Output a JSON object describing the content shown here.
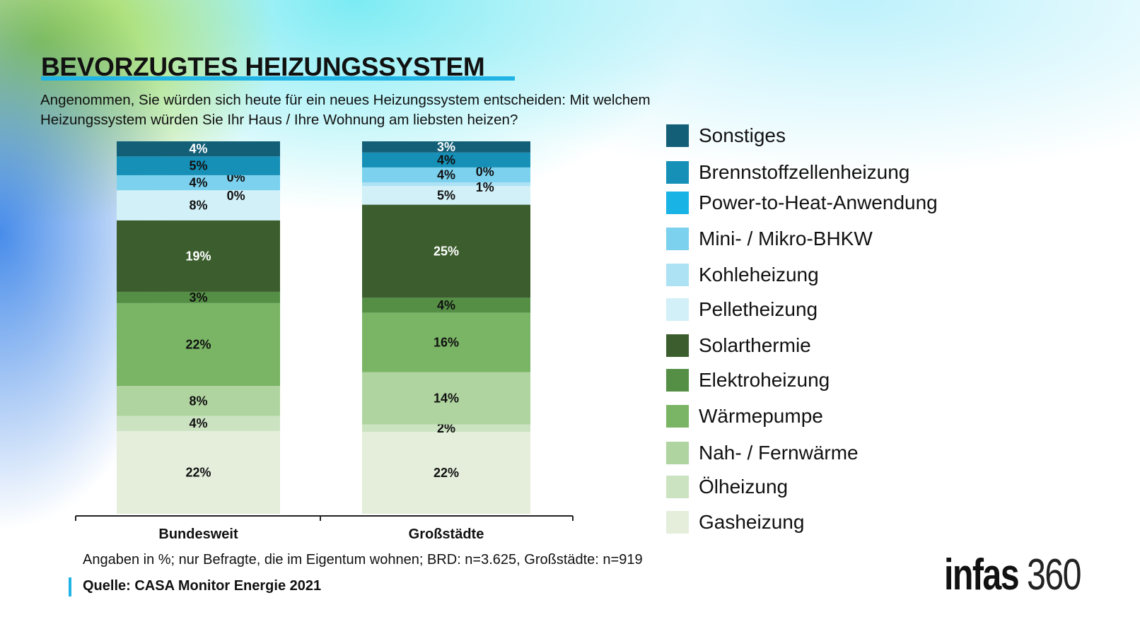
{
  "header": {
    "title": "BEVORZUGTES HEIZUNGSSYSTEM",
    "subtitle": "Angenommen, Sie würden sich heute für ein neues Heizungssystem entscheiden: Mit welchem Heizungssystem würden Sie Ihr Haus / Ihre Wohnung am liebsten heizen?"
  },
  "chart_data": {
    "type": "bar",
    "stacked": true,
    "percent": true,
    "categories": [
      "Bundesweit",
      "Großstädte"
    ],
    "series": [
      {
        "name": "Gasheizung",
        "color": "#e4eedb",
        "label_color": "#111111",
        "values": [
          22,
          22
        ]
      },
      {
        "name": "Ölheizung",
        "color": "#cce3c2",
        "label_color": "#111111",
        "values": [
          4,
          2
        ]
      },
      {
        "name": "Nah- / Fernwärme",
        "color": "#b0d4a0",
        "label_color": "#111111",
        "values": [
          8,
          14
        ]
      },
      {
        "name": "Wärmepumpe",
        "color": "#7ab565",
        "label_color": "#111111",
        "values": [
          22,
          16
        ]
      },
      {
        "name": "Elektroheizung",
        "color": "#548f45",
        "label_color": "#111111",
        "values": [
          3,
          4
        ]
      },
      {
        "name": "Solarthermie",
        "color": "#3c5e2e",
        "label_color": "#ffffff",
        "values": [
          19,
          25
        ]
      },
      {
        "name": "Pelletheizung",
        "color": "#d2f0f8",
        "label_color": "#111111",
        "values": [
          8,
          5
        ]
      },
      {
        "name": "Kohleheizung",
        "color": "#ade2f4",
        "label_color": "#111111",
        "values": [
          0,
          1
        ],
        "label_side": true
      },
      {
        "name": "Mini- / Mikro-BHKW",
        "color": "#7bd1ee",
        "label_color": "#111111",
        "values": [
          4,
          4
        ]
      },
      {
        "name": "Power-to-Heat-Anwendung",
        "color": "#1ab3e6",
        "label_color": "#111111",
        "values": [
          0,
          0
        ],
        "label_side": true
      },
      {
        "name": "Brennstoffzellenheizung",
        "color": "#1690b7",
        "label_color": "#111111",
        "values": [
          5,
          4
        ]
      },
      {
        "name": "Sonstiges",
        "color": "#135f78",
        "label_color": "#ffffff",
        "values": [
          4,
          3
        ]
      }
    ],
    "legend": "right"
  },
  "footer": {
    "note": "Angaben in %; nur Befragte, die im Eigentum wohnen; BRD: n=3.625, Großstädte: n=919",
    "source": "Quelle: CASA Monitor Energie 2021",
    "logo": "infas 360"
  }
}
